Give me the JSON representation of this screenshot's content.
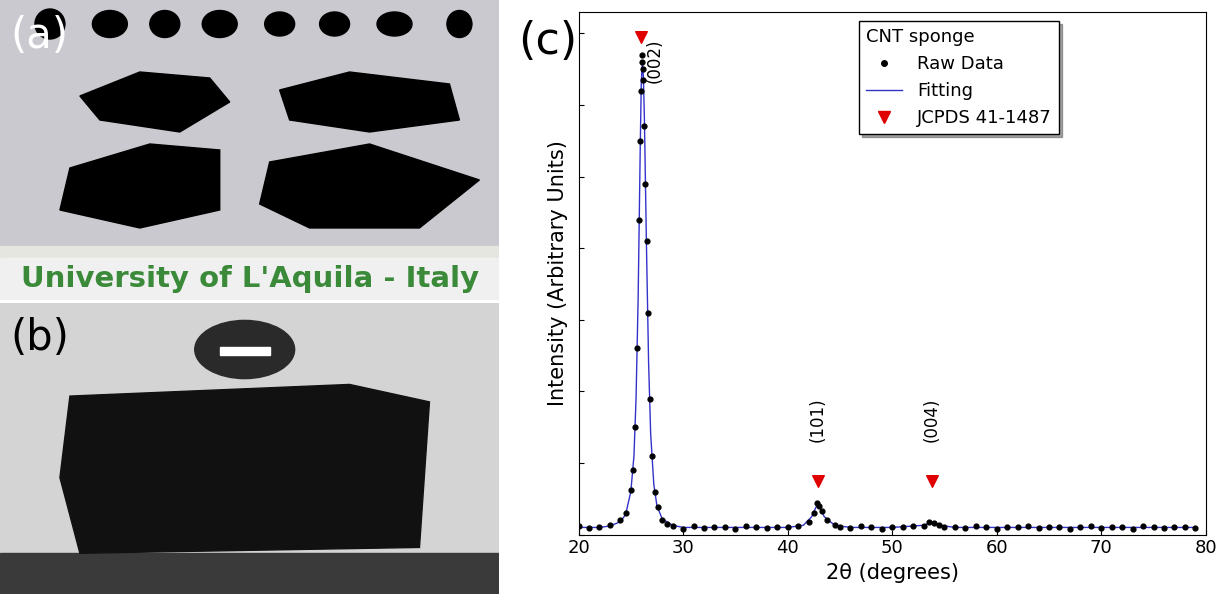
{
  "panels": {
    "a": {
      "label": "(a)",
      "caption": "University of L'Aquila - Italy"
    },
    "b": {
      "label": "(b)"
    }
  },
  "chart_data": {
    "type": "scatter",
    "panel_label": "(c)",
    "legend_title": "CNT sponge",
    "x_label": "2θ (degrees)",
    "y_label": "Intensity (Arbitrary Units)",
    "xlim": [
      20,
      80
    ],
    "ylim": [
      0,
      7.3
    ],
    "xticks": [
      20,
      30,
      40,
      50,
      60,
      70,
      80
    ],
    "yticks": [
      0,
      1,
      2,
      3,
      4,
      5,
      6,
      7
    ],
    "tick_labels": "x",
    "legend": "upper right",
    "series": [
      {
        "name": "Raw Data",
        "type": "scatter",
        "color": "#000000",
        "marker": "circle",
        "x": [
          20,
          21,
          22,
          23,
          24,
          24.5,
          25,
          25.2,
          25.4,
          25.6,
          25.8,
          25.9,
          26.0,
          26.05,
          26.1,
          26.15,
          26.2,
          26.3,
          26.4,
          26.5,
          26.6,
          26.8,
          27.0,
          27.3,
          27.6,
          28,
          28.5,
          29,
          30,
          31,
          32,
          33,
          34,
          35,
          36,
          37,
          38,
          39,
          40,
          41,
          42,
          42.5,
          42.8,
          43.0,
          43.3,
          43.8,
          44.5,
          45,
          46,
          47,
          48,
          49,
          50,
          51,
          52,
          53,
          53.5,
          54,
          54.5,
          55,
          56,
          57,
          58,
          59,
          60,
          61,
          62,
          63,
          64,
          65,
          66,
          67,
          68,
          69,
          70,
          71,
          72,
          73,
          74,
          75,
          76,
          77,
          78,
          79
        ],
        "values": [
          0.12,
          0.09,
          0.11,
          0.14,
          0.2,
          0.3,
          0.62,
          0.9,
          1.5,
          2.6,
          4.4,
          5.5,
          6.2,
          6.6,
          6.7,
          6.5,
          6.35,
          5.7,
          4.9,
          4.1,
          3.1,
          1.9,
          1.1,
          0.6,
          0.38,
          0.2,
          0.15,
          0.12,
          0.08,
          0.12,
          0.09,
          0.11,
          0.1,
          0.08,
          0.12,
          0.1,
          0.09,
          0.11,
          0.1,
          0.12,
          0.18,
          0.3,
          0.44,
          0.4,
          0.33,
          0.2,
          0.14,
          0.11,
          0.09,
          0.12,
          0.1,
          0.08,
          0.11,
          0.1,
          0.12,
          0.12,
          0.17,
          0.16,
          0.13,
          0.1,
          0.11,
          0.09,
          0.12,
          0.1,
          0.08,
          0.11,
          0.1,
          0.12,
          0.09,
          0.1,
          0.11,
          0.08,
          0.1,
          0.12,
          0.09,
          0.1,
          0.11,
          0.08,
          0.12,
          0.1,
          0.09,
          0.11,
          0.1,
          0.09
        ]
      },
      {
        "name": "Fitting",
        "type": "line",
        "color": "#3333cc",
        "line_style": "solid",
        "x": [
          20,
          22,
          23,
          24,
          24.5,
          25,
          25.3,
          25.5,
          25.7,
          25.9,
          26.0,
          26.1,
          26.2,
          26.3,
          26.5,
          26.7,
          26.9,
          27.2,
          27.5,
          28,
          29,
          30,
          35,
          40,
          41.5,
          42.3,
          42.7,
          42.9,
          43.1,
          43.5,
          44.5,
          46,
          50,
          53,
          53.8,
          54.6,
          56,
          60,
          70,
          79
        ],
        "values": [
          0.1,
          0.1,
          0.12,
          0.18,
          0.28,
          0.6,
          1.1,
          1.9,
          3.3,
          5.4,
          6.3,
          6.6,
          6.4,
          5.8,
          4.0,
          2.4,
          1.4,
          0.7,
          0.4,
          0.22,
          0.13,
          0.1,
          0.1,
          0.1,
          0.13,
          0.25,
          0.38,
          0.42,
          0.38,
          0.25,
          0.13,
          0.1,
          0.1,
          0.13,
          0.17,
          0.13,
          0.1,
          0.1,
          0.1,
          0.1
        ]
      },
      {
        "name": "JCPDS 41-1487",
        "type": "scatter",
        "color": "#e00000",
        "marker": "triangle_down",
        "x": [
          26.0,
          42.9,
          53.8
        ],
        "values": [
          6.95,
          0.75,
          0.75
        ]
      }
    ],
    "annotations": [
      {
        "text": "(002)",
        "x": 27.3,
        "y": 6.3
      },
      {
        "text": "(101)",
        "x": 42.9,
        "y": 1.3
      },
      {
        "text": "(004)",
        "x": 53.8,
        "y": 1.3
      }
    ]
  }
}
